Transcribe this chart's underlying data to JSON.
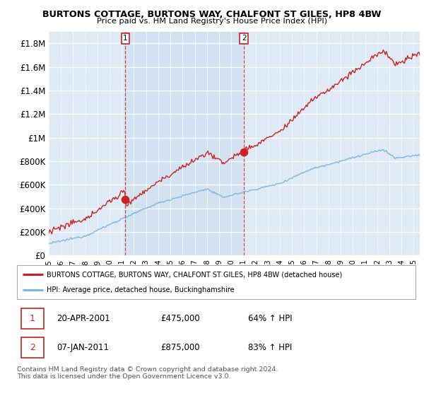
{
  "title": "BURTONS COTTAGE, BURTONS WAY, CHALFONT ST GILES, HP8 4BW",
  "subtitle": "Price paid vs. HM Land Registry's House Price Index (HPI)",
  "ylabel_ticks": [
    "£0",
    "£200K",
    "£400K",
    "£600K",
    "£800K",
    "£1M",
    "£1.2M",
    "£1.4M",
    "£1.6M",
    "£1.8M"
  ],
  "ytick_values": [
    0,
    200000,
    400000,
    600000,
    800000,
    1000000,
    1200000,
    1400000,
    1600000,
    1800000
  ],
  "ylim": [
    0,
    1900000
  ],
  "xlim_start": 1995.0,
  "xlim_end": 2025.5,
  "hpi_color": "#7ab8e8",
  "price_color": "#cc2222",
  "background_color": "#deeaf5",
  "shade_color": "#c8dff2",
  "legend_label_price": "BURTONS COTTAGE, BURTONS WAY, CHALFONT ST GILES, HP8 4BW (detached house)",
  "legend_label_hpi": "HPI: Average price, detached house, Buckinghamshire",
  "marker1_x": 2001.3,
  "marker1_y": 475000,
  "marker1_label": "1",
  "marker2_x": 2011.05,
  "marker2_y": 875000,
  "marker2_label": "2",
  "annotation1": [
    "1",
    "20-APR-2001",
    "£475,000",
    "64% ↑ HPI"
  ],
  "annotation2": [
    "2",
    "07-JAN-2011",
    "£875,000",
    "83% ↑ HPI"
  ],
  "footer": "Contains HM Land Registry data © Crown copyright and database right 2024.\nThis data is licensed under the Open Government Licence v3.0.",
  "vline1_x": 2001.3,
  "vline2_x": 2011.05
}
